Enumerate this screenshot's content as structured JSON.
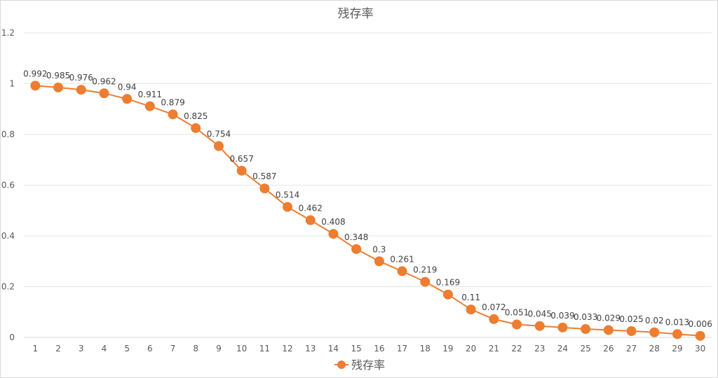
{
  "chart_data": {
    "type": "line",
    "title": "残存率",
    "xlabel": "",
    "ylabel": "",
    "x": [
      1,
      2,
      3,
      4,
      5,
      6,
      7,
      8,
      9,
      10,
      11,
      12,
      13,
      14,
      15,
      16,
      17,
      18,
      19,
      20,
      21,
      22,
      23,
      24,
      25,
      26,
      27,
      28,
      29,
      30
    ],
    "series": [
      {
        "name": "残存率",
        "values": [
          0.992,
          0.985,
          0.976,
          0.962,
          0.94,
          0.911,
          0.879,
          0.825,
          0.754,
          0.657,
          0.587,
          0.514,
          0.462,
          0.408,
          0.348,
          0.3,
          0.261,
          0.219,
          0.169,
          0.11,
          0.072,
          0.051,
          0.045,
          0.039,
          0.033,
          0.029,
          0.025,
          0.02,
          0.013,
          0.006
        ],
        "labels": [
          "0.992",
          "0.985",
          "0.976",
          "0.962",
          "0.94",
          "0.911",
          "0.879",
          "0.825",
          "0.754",
          "0.657",
          "0.587",
          "0.514",
          "0.462",
          "0.408",
          "0.348",
          "0.3",
          "0.261",
          "0.219",
          "0.169",
          "0.11",
          "0.072",
          "0.051",
          "0.045",
          "0.039",
          "0.033",
          "0.029",
          "0.025",
          "0.02",
          "0.013",
          "0.006"
        ],
        "color": "#ED7D31"
      }
    ],
    "ylim": [
      0,
      1.2
    ],
    "yticks": [
      "0",
      "0.2",
      "0.4",
      "0.6",
      "0.8",
      "1",
      "1.2"
    ],
    "grid": true,
    "legend": "bottom"
  }
}
